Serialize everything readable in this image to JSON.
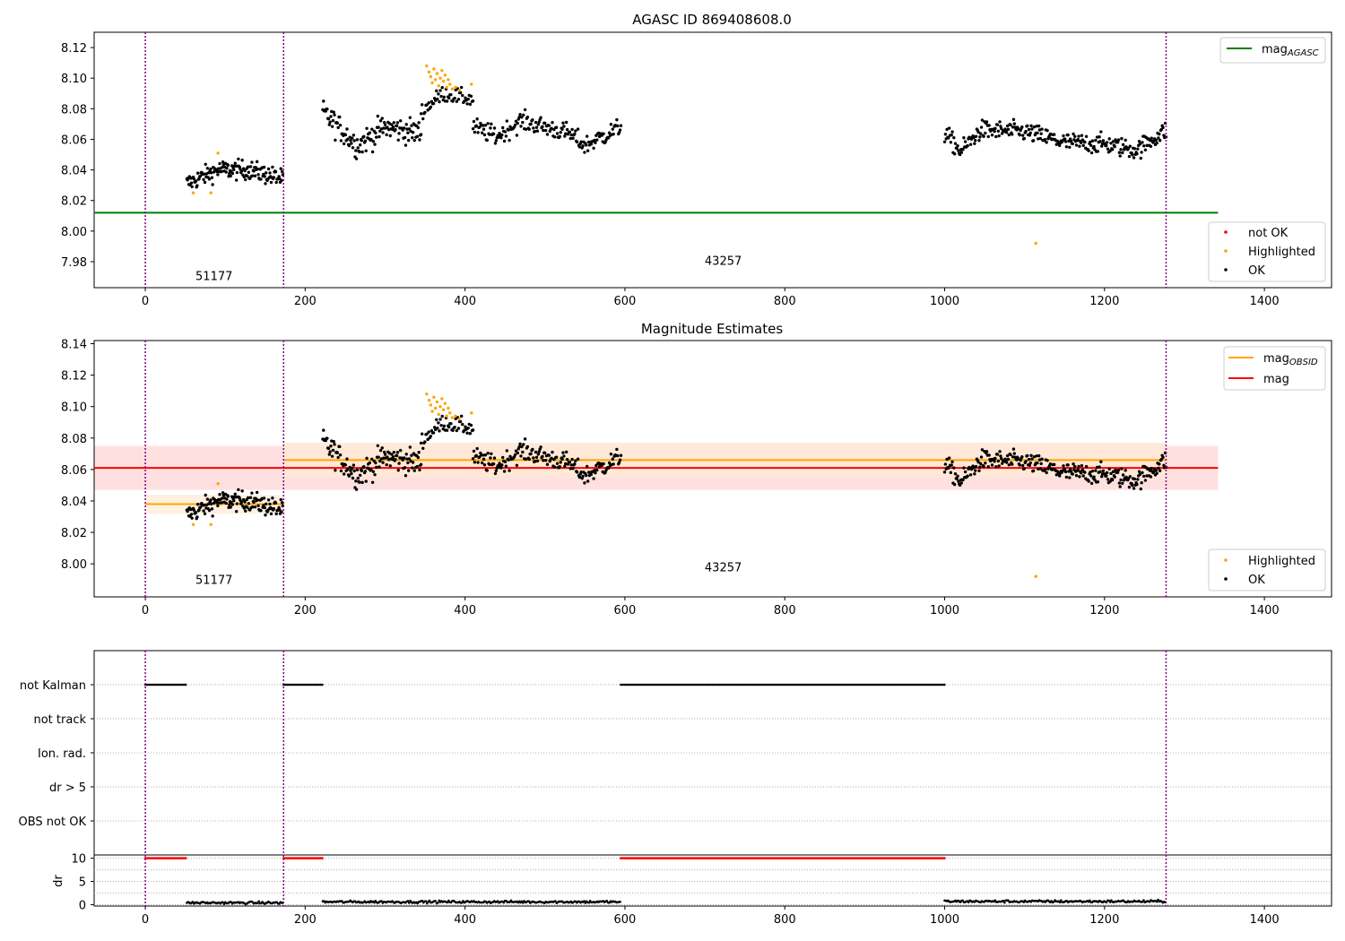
{
  "chart_data": [
    {
      "type": "scatter",
      "title": "AGASC ID 869408608.0",
      "xlim": [
        -64,
        1484
      ],
      "ylim": [
        7.963,
        8.13
      ],
      "xticks": [
        0,
        200,
        400,
        600,
        800,
        1000,
        1200,
        1400
      ],
      "yticks": [
        7.98,
        8.0,
        8.02,
        8.04,
        8.06,
        8.08,
        8.1,
        8.12
      ],
      "vlines": [
        0,
        173,
        1277
      ],
      "annotations": [
        {
          "text": "51177",
          "x": 86,
          "y": 7.971
        },
        {
          "text": "43257",
          "x": 723,
          "y": 7.981
        }
      ],
      "hlines": [
        {
          "name": "mag_AGASC",
          "y": 8.012,
          "x_from": -64,
          "x_to": 1342,
          "color": "#008000"
        }
      ],
      "legend_upper": {
        "placement": "top-right",
        "entries": [
          {
            "label": "mag",
            "sub": "AGASC",
            "color": "#008000"
          }
        ]
      },
      "legend_lower": {
        "placement": "lower-right",
        "entries": [
          {
            "label": "not OK",
            "color": "#ff0000"
          },
          {
            "label": "Highlighted",
            "color": "#ffa500"
          },
          {
            "label": "OK",
            "color": "#000000"
          }
        ]
      },
      "series": [
        {
          "name": "OK",
          "color": "#000000",
          "segments": [
            {
              "x0": 52,
              "x1": 172,
              "n": 150,
              "trend": [
                [
                  52,
                  8.031
                ],
                [
                  90,
                  8.04
                ],
                [
                  130,
                  8.04
                ],
                [
                  172,
                  8.034
                ]
              ],
              "noise": 0.006
            },
            {
              "x0": 222,
              "x1": 345,
              "n": 135,
              "trend": [
                [
                  222,
                  8.078
                ],
                [
                  265,
                  8.056
                ],
                [
                  300,
                  8.068
                ],
                [
                  345,
                  8.064
                ]
              ],
              "noise": 0.008
            },
            {
              "x0": 345,
              "x1": 410,
              "n": 55,
              "trend": [
                [
                  345,
                  8.078
                ],
                [
                  372,
                  8.09
                ],
                [
                  410,
                  8.086
                ]
              ],
              "noise": 0.005
            },
            {
              "x0": 410,
              "x1": 595,
              "n": 180,
              "trend": [
                [
                  410,
                  8.068
                ],
                [
                  440,
                  8.062
                ],
                [
                  470,
                  8.072
                ],
                [
                  530,
                  8.064
                ],
                [
                  550,
                  8.056
                ],
                [
                  595,
                  8.068
                ]
              ],
              "noise": 0.006
            },
            {
              "x0": 1000,
              "x1": 1277,
              "n": 290,
              "trend": [
                [
                  1000,
                  8.064
                ],
                [
                  1020,
                  8.052
                ],
                [
                  1045,
                  8.066
                ],
                [
                  1100,
                  8.065
                ],
                [
                  1150,
                  8.058
                ],
                [
                  1200,
                  8.057
                ],
                [
                  1240,
                  8.053
                ],
                [
                  1277,
                  8.066
                ]
              ],
              "noise": 0.006
            }
          ]
        },
        {
          "name": "Highlighted",
          "color": "#ffa500",
          "points": [
            [
              60,
              8.025
            ],
            [
              82,
              8.025
            ],
            [
              91,
              8.051
            ],
            [
              352,
              8.108
            ],
            [
              355,
              8.104
            ],
            [
              357,
              8.101
            ],
            [
              359,
              8.097
            ],
            [
              361,
              8.106
            ],
            [
              363,
              8.099
            ],
            [
              365,
              8.103
            ],
            [
              367,
              8.095
            ],
            [
              369,
              8.1
            ],
            [
              371,
              8.105
            ],
            [
              373,
              8.098
            ],
            [
              375,
              8.102
            ],
            [
              377,
              8.094
            ],
            [
              379,
              8.099
            ],
            [
              381,
              8.096
            ],
            [
              384,
              8.093
            ],
            [
              388,
              8.094
            ],
            [
              393,
              8.092
            ],
            [
              408,
              8.096
            ],
            [
              1114,
              7.992
            ]
          ]
        }
      ]
    },
    {
      "type": "scatter",
      "title": "Magnitude Estimates",
      "xlim": [
        -64,
        1484
      ],
      "ylim": [
        7.979,
        8.142
      ],
      "xticks": [
        0,
        200,
        400,
        600,
        800,
        1000,
        1200,
        1400
      ],
      "yticks": [
        8.0,
        8.02,
        8.04,
        8.06,
        8.08,
        8.1,
        8.12,
        8.14
      ],
      "vlines": [
        0,
        173,
        1277
      ],
      "annotations": [
        {
          "text": "51177",
          "x": 86,
          "y": 7.99
        },
        {
          "text": "43257",
          "x": 723,
          "y": 7.998
        }
      ],
      "bands": [
        {
          "name": "mag",
          "x_from": -64,
          "x_to": 1342,
          "y_from": 8.047,
          "y_to": 8.075,
          "color": "#ffdddd"
        },
        {
          "name": "mag_OBSID 51177",
          "x_from": 0,
          "x_to": 173,
          "y_from": 8.032,
          "y_to": 8.044,
          "color": "#ffeedd"
        },
        {
          "name": "mag_OBSID 43257",
          "x_from": 173,
          "x_to": 1277,
          "y_from": 8.055,
          "y_to": 8.077,
          "color": "#ffe9d6"
        }
      ],
      "lines": [
        {
          "name": "mag_OBSID",
          "color": "#ffa500",
          "segments": [
            [
              0,
              173,
              8.038
            ],
            [
              173,
              1277,
              8.066
            ]
          ]
        },
        {
          "name": "mag",
          "color": "#ff0000",
          "segments": [
            [
              -64,
              1342,
              8.061
            ]
          ]
        }
      ],
      "legend_upper": {
        "placement": "top-right",
        "entries": [
          {
            "label": "mag",
            "sub": "OBSID",
            "color": "#ffa500"
          },
          {
            "label": "mag",
            "sub": "",
            "color": "#ff0000"
          }
        ]
      },
      "legend_lower": {
        "placement": "lower-right",
        "entries": [
          {
            "label": "Highlighted",
            "color": "#ffa500"
          },
          {
            "label": "OK",
            "color": "#000000"
          }
        ]
      },
      "series_ref": "same points as the AGASC panel"
    },
    {
      "type": "scatter",
      "title": "",
      "categories": [
        "not Kalman",
        "not track",
        "Ion. rad.",
        "dr > 5",
        "OBS not OK"
      ],
      "flag_ranges": [
        {
          "category": "not Kalman",
          "ranges": [
            [
              0,
              52
            ],
            [
              173,
              222
            ],
            [
              595,
              1000
            ]
          ]
        }
      ],
      "xlim": [
        -64,
        1484
      ],
      "vlines": [
        0,
        173,
        1277
      ]
    },
    {
      "type": "scatter",
      "ylabel": "dr",
      "xlim": [
        -64,
        1484
      ],
      "ylim": [
        -0.3,
        10.7
      ],
      "yticks": [
        0,
        5,
        10
      ],
      "xticks": [
        0,
        200,
        400,
        600,
        800,
        1000,
        1200,
        1400
      ],
      "vlines": [
        0,
        173,
        1277
      ],
      "series": [
        {
          "name": "dr",
          "color": "#000000",
          "segments": [
            [
              52,
              172,
              0.4
            ],
            [
              222,
              595,
              0.6
            ],
            [
              1000,
              1277,
              0.7
            ]
          ]
        },
        {
          "name": "dr flagged",
          "color": "#ff0000",
          "value": 10,
          "ranges": [
            [
              0,
              52
            ],
            [
              173,
              222
            ],
            [
              595,
              1000
            ]
          ]
        }
      ]
    }
  ]
}
